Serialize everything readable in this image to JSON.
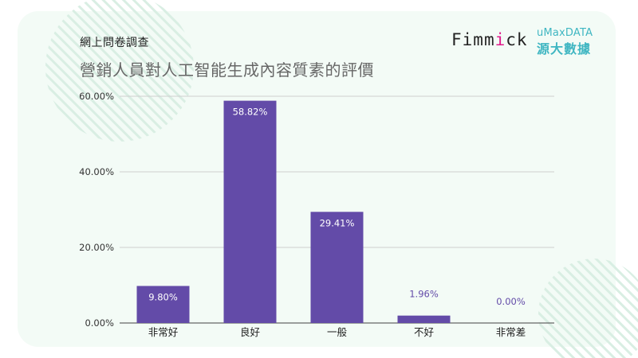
{
  "header": {
    "eyebrow": "網上問卷調查",
    "title": "營銷人員對人工智能生成內容質素的評價"
  },
  "logos": {
    "fimmick_text": "Fimmick",
    "umax_text": "uMaxDATA",
    "umax_cn": "源大數據"
  },
  "colors": {
    "bar": "#634ba8",
    "bar_label_inside": "#ffffff",
    "bar_label_outside": "#634ba8",
    "card": "#f3fbf6",
    "stripes": "#d9eee3",
    "grid": "#cfcfcf"
  },
  "chart_data": {
    "type": "bar",
    "title": "營銷人員對人工智能生成內容質素的評價",
    "categories": [
      "非常好",
      "良好",
      "一般",
      "不好",
      "非常差"
    ],
    "values": [
      9.8,
      58.82,
      29.41,
      1.96,
      0.0
    ],
    "value_labels": [
      "9.80%",
      "58.82%",
      "29.41%",
      "1.96%",
      "0.00%"
    ],
    "ylim": [
      0,
      60
    ],
    "yticks": [
      0,
      20,
      40,
      60
    ],
    "ytick_labels": [
      "0.00%",
      "20.00%",
      "40.00%",
      "60.00%"
    ],
    "xlabel": "",
    "ylabel": "",
    "grid": true,
    "legend": "none"
  }
}
